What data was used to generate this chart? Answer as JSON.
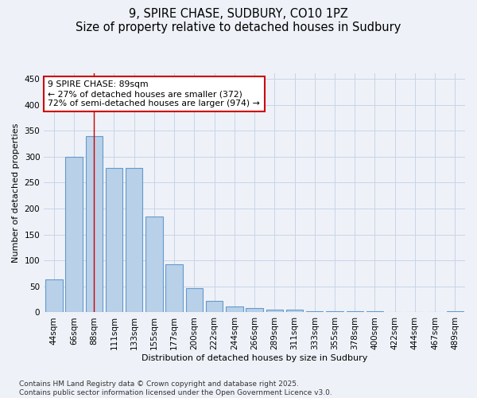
{
  "title": "9, SPIRE CHASE, SUDBURY, CO10 1PZ",
  "subtitle": "Size of property relative to detached houses in Sudbury",
  "xlabel": "Distribution of detached houses by size in Sudbury",
  "ylabel": "Number of detached properties",
  "categories": [
    "44sqm",
    "66sqm",
    "88sqm",
    "111sqm",
    "133sqm",
    "155sqm",
    "177sqm",
    "200sqm",
    "222sqm",
    "244sqm",
    "266sqm",
    "289sqm",
    "311sqm",
    "333sqm",
    "355sqm",
    "378sqm",
    "400sqm",
    "422sqm",
    "444sqm",
    "467sqm",
    "489sqm"
  ],
  "values": [
    63,
    300,
    340,
    278,
    278,
    185,
    93,
    46,
    22,
    12,
    8,
    6,
    5,
    3,
    3,
    2,
    2,
    1,
    1,
    1,
    2
  ],
  "bar_color": "#b8d0e8",
  "bar_edge_color": "#6699cc",
  "vline_x": 2,
  "vline_color": "#cc0000",
  "annotation_line1": "9 SPIRE CHASE: 89sqm",
  "annotation_line2": "← 27% of detached houses are smaller (372)",
  "annotation_line3": "72% of semi-detached houses are larger (974) →",
  "annotation_box_color": "#ffffff",
  "annotation_box_edge": "#cc0000",
  "ylim": [
    0,
    460
  ],
  "yticks": [
    0,
    50,
    100,
    150,
    200,
    250,
    300,
    350,
    400,
    450
  ],
  "footer_line1": "Contains HM Land Registry data © Crown copyright and database right 2025.",
  "footer_line2": "Contains public sector information licensed under the Open Government Licence v3.0.",
  "bg_color": "#eef2f8",
  "grid_color": "#c8d4e8",
  "title_fontsize": 10.5,
  "axis_fontsize": 8,
  "tick_fontsize": 7.5,
  "footer_fontsize": 6.5
}
